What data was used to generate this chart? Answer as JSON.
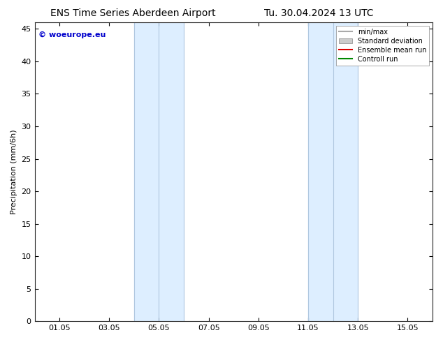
{
  "title_left": "ENS Time Series Aberdeen Airport",
  "title_right": "Tu. 30.04.2024 13 UTC",
  "ylabel": "Precipitation (mm/6h)",
  "ylim": [
    0,
    46
  ],
  "yticks": [
    0,
    5,
    10,
    15,
    20,
    25,
    30,
    35,
    40,
    45
  ],
  "xtick_labels": [
    "01.05",
    "03.05",
    "05.05",
    "07.05",
    "09.05",
    "11.05",
    "13.05",
    "15.05"
  ],
  "xtick_positions": [
    1,
    3,
    5,
    7,
    9,
    11,
    13,
    15
  ],
  "xlim": [
    0,
    16
  ],
  "shaded_bands": [
    {
      "x_start": 4.0,
      "x_end": 5.0,
      "sub_line": 4.5
    },
    {
      "x_start": 5.0,
      "x_end": 6.0,
      "sub_line": 5.5
    },
    {
      "x_start": 11.0,
      "x_end": 12.0,
      "sub_line": 11.5
    },
    {
      "x_start": 12.0,
      "x_end": 13.0,
      "sub_line": 12.5
    }
  ],
  "band_color": "#ddeeff",
  "band_edge_color": "#b0c8e0",
  "background_color": "#ffffff",
  "watermark_text": "© woeurope.eu",
  "watermark_color": "#0000cc",
  "watermark_fontsize": 8,
  "legend_entries": [
    {
      "label": "min/max",
      "color": "#aaaaaa",
      "type": "line",
      "linewidth": 1.5
    },
    {
      "label": "Standard deviation",
      "color": "#cccccc",
      "type": "patch"
    },
    {
      "label": "Ensemble mean run",
      "color": "#dd0000",
      "type": "line",
      "linewidth": 1.5
    },
    {
      "label": "Controll run",
      "color": "#008800",
      "type": "line",
      "linewidth": 1.5
    }
  ],
  "title_fontsize": 10,
  "axis_fontsize": 8,
  "tick_fontsize": 8
}
